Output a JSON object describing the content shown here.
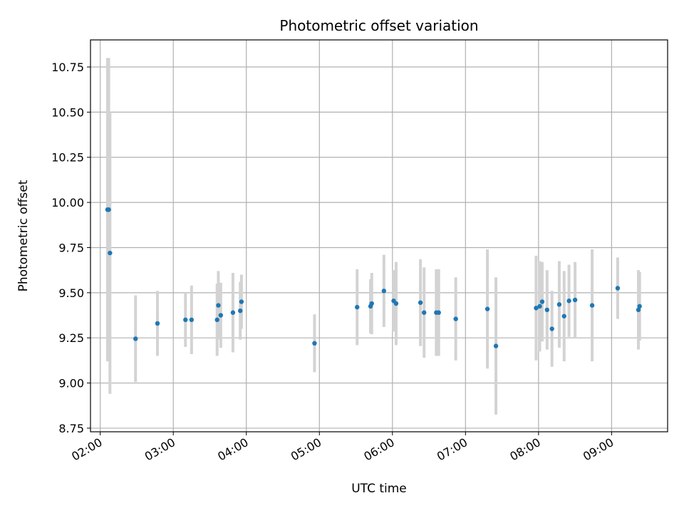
{
  "chart_data": {
    "type": "scatter",
    "title": "Photometric offset variation",
    "xlabel": "UTC time",
    "ylabel": "Photometric offset",
    "x_unit": "UTC time of day",
    "xlim": [
      "01:52",
      "09:46"
    ],
    "ylim": [
      8.73,
      10.9
    ],
    "grid": true,
    "x_ticks": [
      "02:00",
      "03:00",
      "04:00",
      "05:00",
      "06:00",
      "07:00",
      "08:00",
      "09:00"
    ],
    "y_ticks": [
      "8.75",
      "9.00",
      "9.25",
      "9.50",
      "9.75",
      "10.00",
      "10.25",
      "10.50",
      "10.75"
    ],
    "series": [
      {
        "marker_color": "#1f77b4",
        "errorbar_color": "#d3d3d3",
        "points": [
          {
            "t": "02:06",
            "y": 9.96,
            "err": 0.84
          },
          {
            "t": "02:07",
            "y": 9.96,
            "err": 0.84
          },
          {
            "t": "02:08",
            "y": 9.72,
            "err": 0.78
          },
          {
            "t": "02:29",
            "y": 9.245,
            "err": 0.24
          },
          {
            "t": "02:47",
            "y": 9.33,
            "err": 0.18
          },
          {
            "t": "03:10",
            "y": 9.35,
            "err": 0.15
          },
          {
            "t": "03:15",
            "y": 9.35,
            "err": 0.19
          },
          {
            "t": "03:36",
            "y": 9.35,
            "err": 0.2
          },
          {
            "t": "03:37",
            "y": 9.43,
            "err": 0.19
          },
          {
            "t": "03:39",
            "y": 9.375,
            "err": 0.18
          },
          {
            "t": "03:49",
            "y": 9.39,
            "err": 0.22
          },
          {
            "t": "03:55",
            "y": 9.4,
            "err": 0.16
          },
          {
            "t": "03:56",
            "y": 9.45,
            "err": 0.15
          },
          {
            "t": "04:56",
            "y": 9.22,
            "err": 0.16
          },
          {
            "t": "05:31",
            "y": 9.42,
            "err": 0.21
          },
          {
            "t": "05:42",
            "y": 9.425,
            "err": 0.15
          },
          {
            "t": "05:43",
            "y": 9.44,
            "err": 0.17
          },
          {
            "t": "05:53",
            "y": 9.51,
            "err": 0.2
          },
          {
            "t": "06:01",
            "y": 9.455,
            "err": 0.17
          },
          {
            "t": "06:03",
            "y": 9.44,
            "err": 0.23
          },
          {
            "t": "06:23",
            "y": 9.445,
            "err": 0.24
          },
          {
            "t": "06:26",
            "y": 9.39,
            "err": 0.25
          },
          {
            "t": "06:36",
            "y": 9.39,
            "err": 0.24
          },
          {
            "t": "06:38",
            "y": 9.39,
            "err": 0.24
          },
          {
            "t": "06:52",
            "y": 9.355,
            "err": 0.23
          },
          {
            "t": "07:18",
            "y": 9.41,
            "err": 0.33
          },
          {
            "t": "07:25",
            "y": 9.205,
            "err": 0.38
          },
          {
            "t": "07:58",
            "y": 9.415,
            "err": 0.29
          },
          {
            "t": "08:01",
            "y": 9.425,
            "err": 0.25
          },
          {
            "t": "08:03",
            "y": 9.45,
            "err": 0.22
          },
          {
            "t": "08:07",
            "y": 9.405,
            "err": 0.22
          },
          {
            "t": "08:11",
            "y": 9.3,
            "err": 0.21
          },
          {
            "t": "08:17",
            "y": 9.435,
            "err": 0.24
          },
          {
            "t": "08:21",
            "y": 9.37,
            "err": 0.25
          },
          {
            "t": "08:25",
            "y": 9.455,
            "err": 0.2
          },
          {
            "t": "08:30",
            "y": 9.46,
            "err": 0.21
          },
          {
            "t": "08:44",
            "y": 9.43,
            "err": 0.31
          },
          {
            "t": "09:05",
            "y": 9.525,
            "err": 0.17
          },
          {
            "t": "09:22",
            "y": 9.405,
            "err": 0.22
          },
          {
            "t": "09:23",
            "y": 9.425,
            "err": 0.19
          }
        ]
      }
    ]
  }
}
